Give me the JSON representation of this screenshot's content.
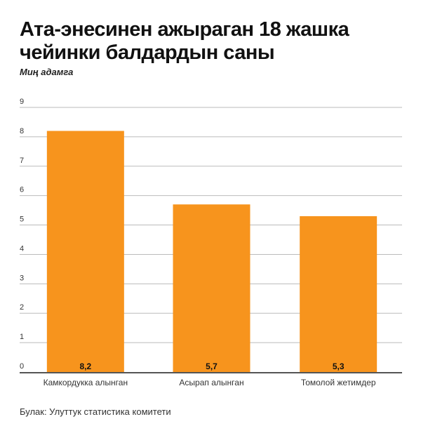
{
  "chart_data": {
    "type": "bar",
    "title": "Ата-энесинен ажыраган 18 жашка чейинки балдардын саны",
    "subtitle": "Миң адамга",
    "categories": [
      "Камкордукка алынган",
      "Асырап алынган",
      "Томолой жетимдер"
    ],
    "values": [
      8.2,
      5.7,
      5.3
    ],
    "value_labels": [
      "8,2",
      "5,7",
      "5,3"
    ],
    "yticks": [
      "0",
      "1",
      "2",
      "3",
      "4",
      "5",
      "6",
      "7",
      "8",
      "9"
    ],
    "ylim": [
      0,
      9
    ],
    "xlabel": "",
    "ylabel": "",
    "grid": true,
    "bar_color": "#F7941D",
    "source": "Булак: Улуттук статистика комитети"
  }
}
